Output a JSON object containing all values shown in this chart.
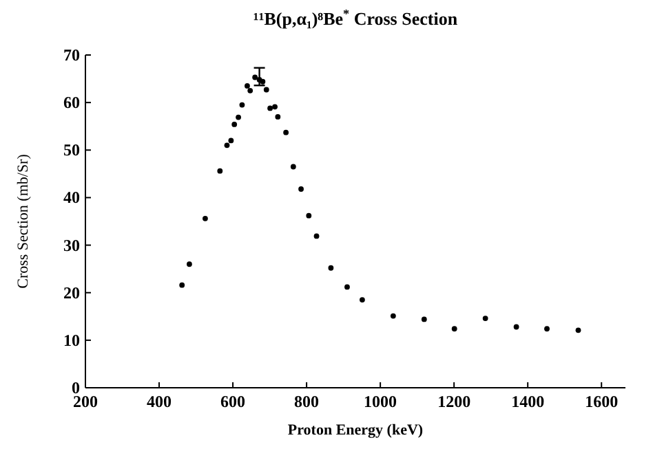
{
  "chart_data": {
    "type": "scatter",
    "title": "¹¹B(p,α₁)⁸Be$^{*}$ Cross Section",
    "xlabel": "Proton Energy (keV)",
    "ylabel": "Cross Section (mb/Sr)",
    "x": [
      462,
      482,
      525,
      565,
      584,
      595,
      604,
      615,
      625,
      639,
      647,
      660,
      672,
      681,
      691,
      701,
      714,
      722,
      744,
      764,
      785,
      806,
      827,
      866,
      910,
      951,
      1035,
      1119,
      1201,
      1285,
      1369,
      1452,
      1537
    ],
    "series": [
      {
        "color": "#000000",
        "values": [
          21.6,
          26.0,
          35.6,
          45.6,
          51.0,
          52.0,
          55.4,
          56.9,
          59.5,
          63.5,
          62.5,
          65.3,
          64.8,
          64.4,
          62.7,
          58.8,
          59.1,
          57.0,
          53.7,
          46.5,
          41.8,
          36.2,
          31.9,
          25.2,
          21.2,
          18.5,
          15.1,
          14.4,
          12.4,
          14.6,
          12.8,
          12.4,
          12.1
        ],
        "errors": [
          null,
          null,
          null,
          null,
          null,
          null,
          null,
          null,
          null,
          null,
          null,
          null,
          [
            63.6,
            67.3
          ],
          null,
          null,
          null,
          null,
          null,
          null,
          null,
          null,
          null,
          null,
          null,
          null,
          null,
          null,
          null,
          null,
          null,
          null,
          null,
          null
        ]
      }
    ],
    "xlim": [
      200,
      1665
    ],
    "ylim": [
      0,
      70
    ],
    "xticks": [
      200,
      400,
      600,
      800,
      1000,
      1200,
      1400,
      1600
    ],
    "yticks": [
      0,
      10,
      20,
      30,
      40,
      50,
      60,
      70
    ],
    "marker": "circle"
  }
}
